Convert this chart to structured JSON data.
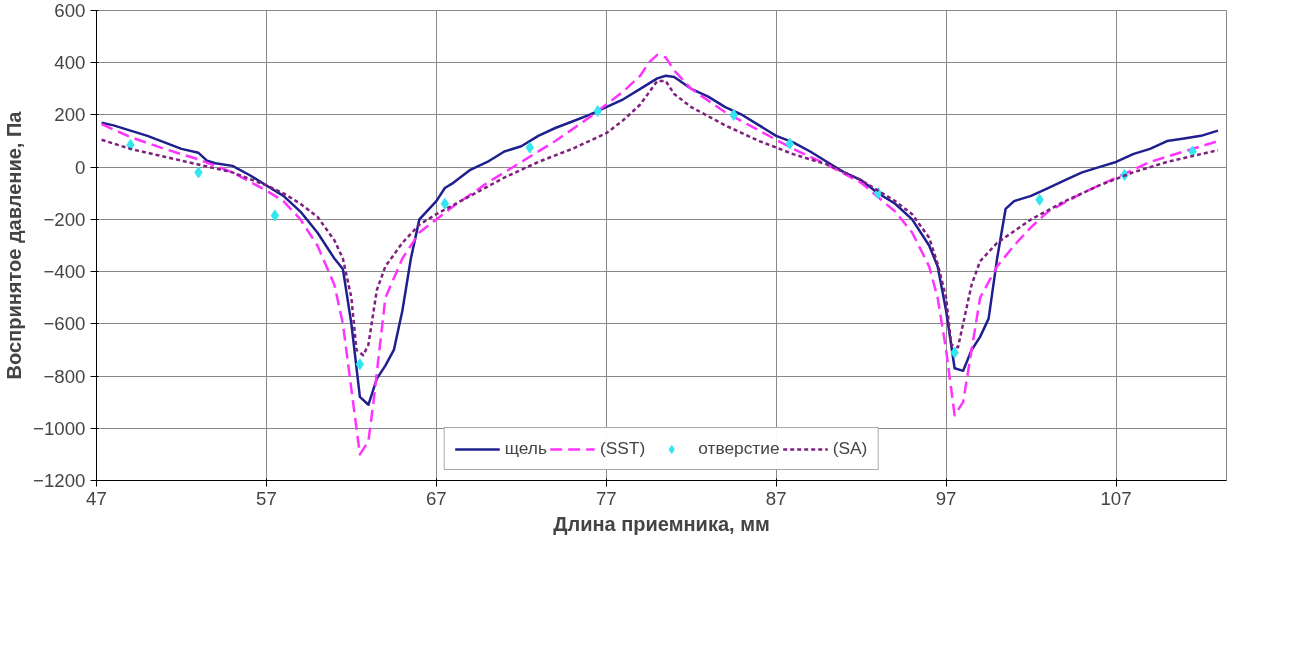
{
  "chart_data": {
    "type": "line",
    "xlabel": "Длина приемника, мм",
    "ylabel": "Воспринятое давление, Па",
    "xlim": [
      47,
      113.5
    ],
    "xticks": [
      47,
      57,
      67,
      77,
      87,
      97,
      107
    ],
    "ylim": [
      -1200,
      600
    ],
    "yticks": [
      -1200,
      -1000,
      -800,
      -600,
      -400,
      -200,
      0,
      200,
      400,
      600
    ],
    "grid": true,
    "legend": "bottom",
    "series": [
      {
        "name": "щель",
        "line_style": "solid",
        "color": "#1f1f8f",
        "x": [
          47.3,
          48,
          49,
          50,
          51,
          52,
          53,
          53.5,
          54,
          55,
          56,
          57,
          58,
          59,
          60,
          61,
          61.5,
          62,
          62.5,
          63,
          63.5,
          64,
          64.5,
          65,
          65.5,
          66,
          67,
          67.5,
          68,
          69,
          70,
          71,
          72,
          73,
          74,
          75,
          76,
          77,
          78,
          79,
          80,
          80.5,
          81,
          82,
          83,
          84,
          85,
          86,
          87,
          88,
          89,
          90,
          91,
          92,
          93,
          94,
          95,
          96,
          96.5,
          97,
          97.5,
          98,
          98.5,
          99,
          99.5,
          100,
          100.5,
          101,
          102,
          103,
          104,
          105,
          106,
          107,
          108,
          109,
          110,
          111,
          112,
          113
        ],
        "values": [
          170,
          160,
          140,
          120,
          95,
          70,
          55,
          25,
          15,
          5,
          -30,
          -70,
          -110,
          -170,
          -250,
          -350,
          -390,
          -600,
          -880,
          -910,
          -810,
          -760,
          -700,
          -550,
          -350,
          -200,
          -130,
          -80,
          -60,
          -10,
          20,
          60,
          80,
          120,
          150,
          175,
          200,
          230,
          260,
          300,
          340,
          350,
          345,
          300,
          270,
          230,
          200,
          160,
          120,
          95,
          60,
          20,
          -20,
          -50,
          -100,
          -140,
          -200,
          -300,
          -380,
          -550,
          -770,
          -780,
          -700,
          -650,
          -580,
          -350,
          -160,
          -130,
          -110,
          -80,
          -50,
          -20,
          0,
          20,
          50,
          70,
          100,
          110,
          120,
          140
        ]
      },
      {
        "name": "(SST)",
        "line_style": "dashed",
        "color": "#ff33ff",
        "x": [
          47.3,
          49,
          51,
          53,
          55,
          57,
          58,
          59,
          60,
          61,
          61.5,
          62,
          62.5,
          63,
          63.3,
          64,
          65,
          66,
          67,
          68,
          70,
          72,
          74,
          76,
          78,
          79,
          79.5,
          80,
          80.5,
          81,
          82,
          84,
          86,
          88,
          90,
          92,
          94,
          95,
          96,
          96.5,
          97,
          97.5,
          98,
          98.5,
          99,
          100,
          101,
          102,
          103,
          105,
          107,
          109,
          111,
          113
        ],
        "values": [
          165,
          115,
          70,
          30,
          -20,
          -90,
          -130,
          -200,
          -300,
          -450,
          -600,
          -850,
          -1100,
          -1050,
          -900,
          -500,
          -350,
          -250,
          -200,
          -150,
          -60,
          20,
          100,
          190,
          290,
          350,
          400,
          430,
          420,
          370,
          300,
          210,
          140,
          70,
          10,
          -60,
          -170,
          -250,
          -380,
          -500,
          -700,
          -950,
          -900,
          -700,
          -500,
          -380,
          -300,
          -230,
          -170,
          -100,
          -40,
          20,
          60,
          100
        ]
      },
      {
        "name": "отверстие",
        "type": "scatter",
        "marker": "diamond",
        "color": "#33e6f0",
        "x": [
          49,
          53,
          57.5,
          62.5,
          67.5,
          72.5,
          76.5,
          84.5,
          87.8,
          93,
          97.5,
          102.5,
          107.5,
          111.5
        ],
        "values": [
          85,
          -20,
          -185,
          -755,
          -140,
          75,
          215,
          200,
          90,
          -100,
          -710,
          -125,
          -30,
          60
        ]
      },
      {
        "name": "(SA)",
        "line_style": "dotted",
        "color": "#7f1f7f",
        "x": [
          47.3,
          49,
          51,
          53,
          55,
          57,
          58,
          59,
          60,
          61,
          61.5,
          62,
          62.3,
          62.7,
          63,
          63.5,
          64,
          65,
          66,
          67,
          69,
          71,
          73,
          75,
          77,
          78,
          79,
          80,
          80.5,
          81,
          82,
          84,
          86,
          88,
          90,
          92,
          94,
          95,
          96,
          96.5,
          97,
          97.3,
          97.7,
          98,
          98.5,
          99,
          100,
          102,
          104,
          106,
          108,
          110,
          113
        ],
        "values": [
          105,
          70,
          40,
          10,
          -20,
          -70,
          -100,
          -140,
          -190,
          -280,
          -350,
          -500,
          -700,
          -720,
          -680,
          -470,
          -380,
          -290,
          -220,
          -180,
          -110,
          -40,
          20,
          70,
          130,
          180,
          240,
          330,
          330,
          280,
          230,
          160,
          100,
          50,
          10,
          -50,
          -130,
          -180,
          -270,
          -370,
          -500,
          -680,
          -690,
          -600,
          -450,
          -360,
          -290,
          -200,
          -130,
          -70,
          -20,
          20,
          65
        ]
      }
    ]
  }
}
